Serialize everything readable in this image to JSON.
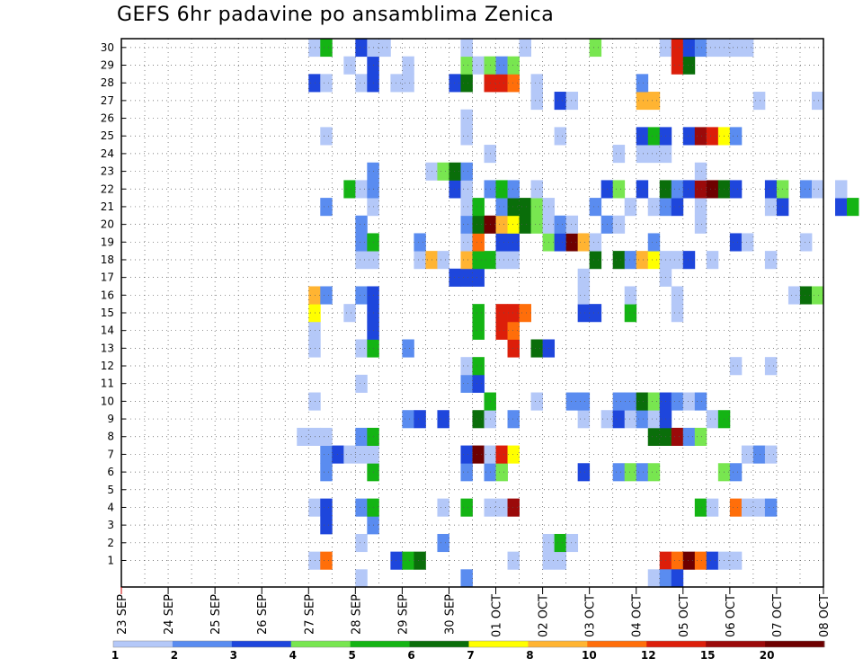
{
  "chart_data": {
    "type": "heatmap",
    "title": "GEFS 6hr padavine po ansamblima Zenica",
    "xlabel": "",
    "ylabel": "",
    "y_categories": [
      1,
      2,
      3,
      4,
      5,
      6,
      7,
      8,
      9,
      10,
      11,
      12,
      13,
      14,
      15,
      16,
      17,
      18,
      19,
      20,
      21,
      22,
      23,
      24,
      25,
      26,
      27,
      28,
      29,
      30
    ],
    "x_tick_labels": [
      "23 SEP",
      "24 SEP",
      "25 SEP",
      "26 SEP",
      "27 SEP",
      "28 SEP",
      "29 SEP",
      "30 SEP",
      "01 OCT",
      "02 OCT",
      "03 OCT",
      "04 OCT",
      "05 OCT",
      "06 OCT",
      "07 OCT",
      "08 OCT"
    ],
    "time_steps_per_day": 4,
    "legend": {
      "colors": [
        "#b4c8f8",
        "#5a8cf0",
        "#1e46dc",
        "#78e650",
        "#14b414",
        "#0a6e0a",
        "#ffff00",
        "#ffb432",
        "#ff6e0a",
        "#dc1e0a",
        "#9b0a0a",
        "#6e0000"
      ],
      "tick_labels": [
        "1",
        "2",
        "3",
        "4",
        "5",
        "6",
        "7",
        "8",
        "10",
        "12",
        "15",
        "20"
      ]
    },
    "cells": [
      [
        1,
        16,
        0
      ],
      [
        1,
        17,
        8
      ],
      [
        1,
        23,
        2
      ],
      [
        1,
        24,
        4
      ],
      [
        1,
        25,
        5
      ],
      [
        1,
        33,
        0
      ],
      [
        1,
        36,
        0
      ],
      [
        1,
        37,
        0
      ],
      [
        1,
        46,
        9
      ],
      [
        1,
        47,
        8
      ],
      [
        1,
        48,
        11
      ],
      [
        1,
        49,
        8
      ],
      [
        1,
        50,
        2
      ],
      [
        1,
        51,
        0
      ],
      [
        1,
        52,
        0
      ],
      [
        2,
        20,
        0
      ],
      [
        2,
        27,
        1
      ],
      [
        2,
        36,
        0
      ],
      [
        2,
        37,
        4
      ],
      [
        2,
        38,
        0
      ],
      [
        3,
        17,
        2
      ],
      [
        3,
        21,
        1
      ],
      [
        4,
        16,
        0
      ],
      [
        4,
        17,
        2
      ],
      [
        4,
        20,
        1
      ],
      [
        4,
        21,
        4
      ],
      [
        4,
        29,
        4
      ],
      [
        4,
        31,
        0
      ],
      [
        4,
        32,
        0
      ],
      [
        4,
        33,
        10
      ],
      [
        4,
        27,
        0
      ],
      [
        4,
        49,
        4
      ],
      [
        4,
        50,
        0
      ],
      [
        4,
        52,
        8
      ],
      [
        4,
        53,
        0
      ],
      [
        4,
        54,
        0
      ],
      [
        4,
        55,
        1
      ],
      [
        6,
        17,
        1
      ],
      [
        6,
        21,
        4
      ],
      [
        6,
        29,
        1
      ],
      [
        6,
        31,
        1
      ],
      [
        6,
        32,
        3
      ],
      [
        6,
        39,
        2
      ],
      [
        6,
        42,
        1
      ],
      [
        6,
        43,
        3
      ],
      [
        6,
        44,
        1
      ],
      [
        6,
        45,
        3
      ],
      [
        6,
        51,
        3
      ],
      [
        6,
        52,
        1
      ],
      [
        7,
        17,
        1
      ],
      [
        7,
        18,
        2
      ],
      [
        7,
        19,
        0
      ],
      [
        7,
        20,
        0
      ],
      [
        7,
        21,
        0
      ],
      [
        7,
        29,
        2
      ],
      [
        7,
        30,
        11
      ],
      [
        7,
        31,
        0
      ],
      [
        7,
        32,
        9
      ],
      [
        7,
        33,
        6
      ],
      [
        7,
        53,
        0
      ],
      [
        7,
        54,
        1
      ],
      [
        7,
        55,
        0
      ],
      [
        8,
        15,
        0
      ],
      [
        8,
        16,
        0
      ],
      [
        8,
        17,
        0
      ],
      [
        8,
        20,
        1
      ],
      [
        8,
        21,
        4
      ],
      [
        8,
        45,
        5
      ],
      [
        8,
        46,
        5
      ],
      [
        8,
        47,
        10
      ],
      [
        8,
        48,
        1
      ],
      [
        8,
        49,
        3
      ],
      [
        9,
        24,
        1
      ],
      [
        9,
        25,
        2
      ],
      [
        9,
        27,
        2
      ],
      [
        9,
        30,
        5
      ],
      [
        9,
        31,
        0
      ],
      [
        9,
        33,
        1
      ],
      [
        9,
        39,
        0
      ],
      [
        9,
        41,
        0
      ],
      [
        9,
        42,
        2
      ],
      [
        9,
        43,
        0
      ],
      [
        9,
        44,
        1
      ],
      [
        9,
        45,
        0
      ],
      [
        9,
        46,
        2
      ],
      [
        9,
        50,
        0
      ],
      [
        9,
        51,
        4
      ],
      [
        10,
        16,
        0
      ],
      [
        10,
        31,
        4
      ],
      [
        10,
        35,
        0
      ],
      [
        10,
        38,
        1
      ],
      [
        10,
        39,
        1
      ],
      [
        10,
        42,
        1
      ],
      [
        10,
        43,
        1
      ],
      [
        10,
        44,
        5
      ],
      [
        10,
        45,
        3
      ],
      [
        10,
        46,
        2
      ],
      [
        10,
        47,
        1
      ],
      [
        10,
        48,
        0
      ],
      [
        10,
        49,
        1
      ],
      [
        11,
        20,
        0
      ],
      [
        11,
        29,
        1
      ],
      [
        11,
        30,
        2
      ],
      [
        12,
        29,
        0
      ],
      [
        12,
        30,
        4
      ],
      [
        12,
        52,
        0
      ],
      [
        12,
        55,
        0
      ],
      [
        13,
        16,
        0
      ],
      [
        13,
        20,
        0
      ],
      [
        13,
        21,
        4
      ],
      [
        13,
        24,
        1
      ],
      [
        13,
        33,
        9
      ],
      [
        13,
        35,
        5
      ],
      [
        13,
        36,
        2
      ],
      [
        14,
        16,
        0
      ],
      [
        14,
        21,
        2
      ],
      [
        14,
        30,
        4
      ],
      [
        14,
        32,
        9
      ],
      [
        14,
        33,
        8
      ],
      [
        15,
        16,
        6
      ],
      [
        15,
        19,
        0
      ],
      [
        15,
        21,
        2
      ],
      [
        15,
        32,
        9
      ],
      [
        15,
        33,
        9
      ],
      [
        15,
        34,
        8
      ],
      [
        15,
        30,
        4
      ],
      [
        15,
        39,
        2
      ],
      [
        15,
        40,
        2
      ],
      [
        15,
        43,
        4
      ],
      [
        15,
        47,
        0
      ],
      [
        16,
        16,
        7
      ],
      [
        16,
        17,
        1
      ],
      [
        16,
        20,
        1
      ],
      [
        16,
        21,
        2
      ],
      [
        16,
        39,
        0
      ],
      [
        16,
        43,
        0
      ],
      [
        16,
        47,
        0
      ],
      [
        16,
        57,
        0
      ],
      [
        16,
        58,
        5
      ],
      [
        16,
        59,
        3
      ],
      [
        17,
        28,
        2
      ],
      [
        17,
        29,
        2
      ],
      [
        17,
        30,
        2
      ],
      [
        17,
        39,
        0
      ],
      [
        17,
        46,
        0
      ],
      [
        18,
        20,
        0
      ],
      [
        18,
        21,
        0
      ],
      [
        18,
        25,
        0
      ],
      [
        18,
        26,
        7
      ],
      [
        18,
        27,
        0
      ],
      [
        18,
        29,
        7
      ],
      [
        18,
        30,
        4
      ],
      [
        18,
        31,
        4
      ],
      [
        18,
        32,
        0
      ],
      [
        18,
        33,
        0
      ],
      [
        18,
        40,
        5
      ],
      [
        18,
        42,
        5
      ],
      [
        18,
        43,
        1
      ],
      [
        18,
        44,
        7
      ],
      [
        18,
        45,
        6
      ],
      [
        18,
        46,
        0
      ],
      [
        18,
        47,
        0
      ],
      [
        18,
        48,
        2
      ],
      [
        18,
        50,
        0
      ],
      [
        18,
        55,
        0
      ],
      [
        19,
        20,
        1
      ],
      [
        19,
        21,
        4
      ],
      [
        19,
        25,
        1
      ],
      [
        19,
        29,
        0
      ],
      [
        19,
        30,
        8
      ],
      [
        19,
        32,
        2
      ],
      [
        19,
        33,
        2
      ],
      [
        19,
        36,
        3
      ],
      [
        19,
        37,
        2
      ],
      [
        19,
        38,
        11
      ],
      [
        19,
        39,
        7
      ],
      [
        19,
        40,
        0
      ],
      [
        19,
        45,
        1
      ],
      [
        19,
        52,
        2
      ],
      [
        19,
        53,
        0
      ],
      [
        19,
        58,
        0
      ],
      [
        20,
        20,
        1
      ],
      [
        20,
        29,
        1
      ],
      [
        20,
        30,
        5
      ],
      [
        20,
        31,
        11
      ],
      [
        20,
        32,
        7
      ],
      [
        20,
        33,
        6
      ],
      [
        20,
        34,
        5
      ],
      [
        20,
        35,
        3
      ],
      [
        20,
        36,
        0
      ],
      [
        20,
        37,
        1
      ],
      [
        20,
        38,
        0
      ],
      [
        20,
        41,
        1
      ],
      [
        20,
        42,
        0
      ],
      [
        20,
        49,
        0
      ],
      [
        21,
        17,
        1
      ],
      [
        21,
        21,
        0
      ],
      [
        21,
        29,
        0
      ],
      [
        21,
        30,
        4
      ],
      [
        21,
        32,
        1
      ],
      [
        21,
        33,
        5
      ],
      [
        21,
        34,
        5
      ],
      [
        21,
        35,
        3
      ],
      [
        21,
        36,
        0
      ],
      [
        21,
        40,
        1
      ],
      [
        21,
        43,
        0
      ],
      [
        21,
        45,
        0
      ],
      [
        21,
        46,
        1
      ],
      [
        21,
        47,
        2
      ],
      [
        21,
        49,
        0
      ],
      [
        21,
        55,
        0
      ],
      [
        21,
        56,
        2
      ],
      [
        21,
        61,
        2
      ],
      [
        21,
        62,
        4
      ],
      [
        22,
        19,
        4
      ],
      [
        22,
        20,
        0
      ],
      [
        22,
        21,
        1
      ],
      [
        22,
        28,
        2
      ],
      [
        22,
        29,
        0
      ],
      [
        22,
        31,
        1
      ],
      [
        22,
        32,
        4
      ],
      [
        22,
        33,
        1
      ],
      [
        22,
        35,
        0
      ],
      [
        22,
        41,
        2
      ],
      [
        22,
        42,
        3
      ],
      [
        22,
        44,
        2
      ],
      [
        22,
        46,
        5
      ],
      [
        22,
        47,
        1
      ],
      [
        22,
        48,
        2
      ],
      [
        22,
        49,
        10
      ],
      [
        22,
        50,
        11
      ],
      [
        22,
        51,
        5
      ],
      [
        22,
        52,
        2
      ],
      [
        22,
        55,
        2
      ],
      [
        22,
        56,
        3
      ],
      [
        22,
        58,
        1
      ],
      [
        22,
        59,
        0
      ],
      [
        22,
        61,
        0
      ],
      [
        23,
        21,
        1
      ],
      [
        23,
        26,
        0
      ],
      [
        23,
        27,
        3
      ],
      [
        23,
        28,
        5
      ],
      [
        23,
        29,
        1
      ],
      [
        23,
        49,
        0
      ],
      [
        24,
        31,
        0
      ],
      [
        24,
        42,
        0
      ],
      [
        24,
        44,
        0
      ],
      [
        24,
        45,
        0
      ],
      [
        24,
        46,
        0
      ],
      [
        25,
        17,
        0
      ],
      [
        25,
        29,
        0
      ],
      [
        25,
        37,
        0
      ],
      [
        25,
        44,
        2
      ],
      [
        25,
        45,
        4
      ],
      [
        25,
        46,
        2
      ],
      [
        25,
        48,
        2
      ],
      [
        25,
        49,
        10
      ],
      [
        25,
        50,
        9
      ],
      [
        25,
        51,
        6
      ],
      [
        25,
        52,
        1
      ],
      [
        26,
        29,
        0
      ],
      [
        27,
        35,
        0
      ],
      [
        27,
        37,
        2
      ],
      [
        27,
        38,
        0
      ],
      [
        27,
        44,
        7
      ],
      [
        27,
        45,
        7
      ],
      [
        27,
        54,
        0
      ],
      [
        27,
        59,
        0
      ],
      [
        28,
        16,
        2
      ],
      [
        28,
        17,
        0
      ],
      [
        28,
        20,
        0
      ],
      [
        28,
        21,
        2
      ],
      [
        28,
        23,
        0
      ],
      [
        28,
        24,
        0
      ],
      [
        28,
        28,
        2
      ],
      [
        28,
        29,
        5
      ],
      [
        28,
        31,
        9
      ],
      [
        28,
        32,
        9
      ],
      [
        28,
        33,
        8
      ],
      [
        28,
        35,
        0
      ],
      [
        28,
        44,
        1
      ],
      [
        29,
        19,
        0
      ],
      [
        29,
        21,
        2
      ],
      [
        29,
        24,
        0
      ],
      [
        29,
        29,
        3
      ],
      [
        29,
        30,
        0
      ],
      [
        29,
        31,
        3
      ],
      [
        29,
        32,
        1
      ],
      [
        29,
        33,
        3
      ],
      [
        29,
        47,
        9
      ],
      [
        29,
        48,
        5
      ],
      [
        30,
        16,
        0
      ],
      [
        30,
        17,
        4
      ],
      [
        30,
        20,
        2
      ],
      [
        30,
        21,
        0
      ],
      [
        30,
        22,
        0
      ],
      [
        30,
        29,
        0
      ],
      [
        30,
        34,
        0
      ],
      [
        30,
        40,
        3
      ],
      [
        30,
        46,
        0
      ],
      [
        30,
        47,
        9
      ],
      [
        30,
        48,
        2
      ],
      [
        30,
        49,
        1
      ],
      [
        30,
        50,
        0
      ],
      [
        30,
        51,
        0
      ],
      [
        30,
        52,
        0
      ],
      [
        30,
        53,
        0
      ],
      [
        0,
        20,
        0
      ],
      [
        0,
        29,
        1
      ],
      [
        0,
        45,
        0
      ],
      [
        0,
        46,
        1
      ],
      [
        0,
        47,
        2
      ]
    ]
  }
}
